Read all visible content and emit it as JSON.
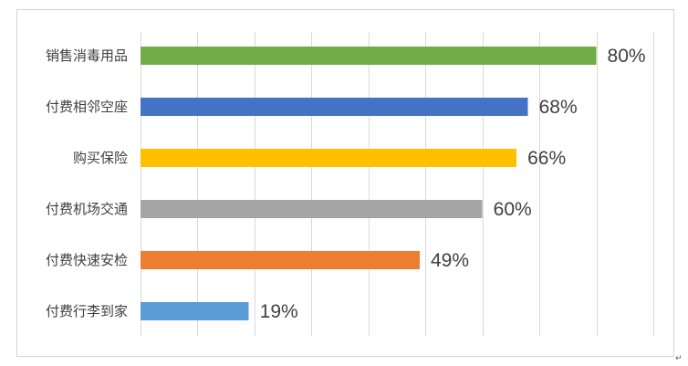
{
  "chart_data": {
    "type": "bar",
    "orientation": "horizontal",
    "categories": [
      "销售消毒用品",
      "付费相邻空座",
      "购买保险",
      "付费机场交通",
      "付费快速安检",
      "付费行李到家"
    ],
    "values": [
      80,
      68,
      66,
      60,
      49,
      19
    ],
    "value_labels": [
      "80%",
      "68%",
      "66%",
      "60%",
      "49%",
      "19%"
    ],
    "bar_colors": [
      "#70AD47",
      "#4472C4",
      "#FFC000",
      "#A5A5A5",
      "#ED7D31",
      "#5B9BD5"
    ],
    "xlim": [
      0,
      90
    ],
    "x_gridline_step": 10,
    "grid": true
  },
  "doc": {
    "paragraph_mark": "↵"
  }
}
